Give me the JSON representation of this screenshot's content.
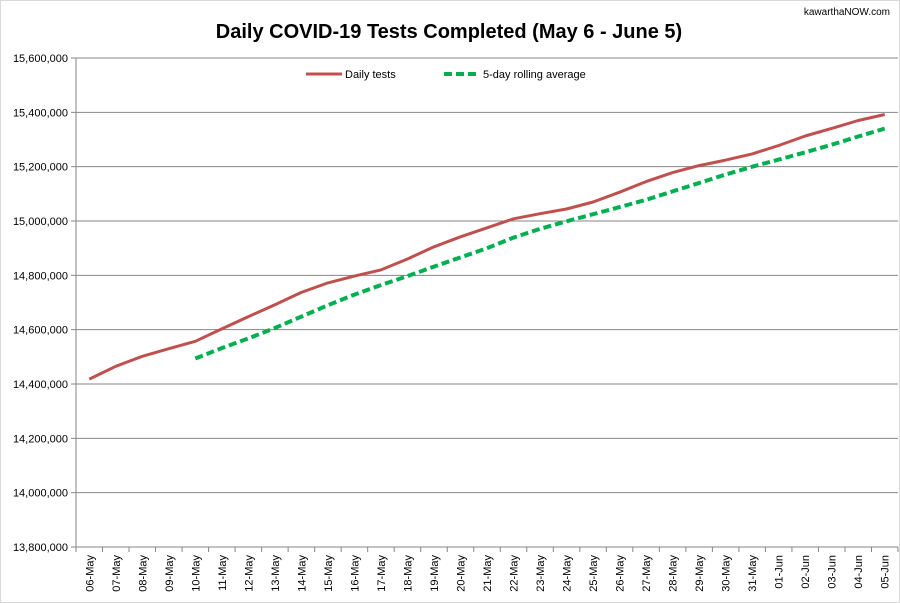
{
  "chart_data": {
    "type": "line",
    "title": "Daily COVID-19 Tests Completed (May 6 - June 5)",
    "source_label": "kawarthaNOW.com",
    "categories": [
      "06-May",
      "07-May",
      "08-May",
      "09-May",
      "10-May",
      "11-May",
      "12-May",
      "13-May",
      "14-May",
      "15-May",
      "16-May",
      "17-May",
      "18-May",
      "19-May",
      "20-May",
      "21-May",
      "22-May",
      "23-May",
      "24-May",
      "25-May",
      "26-May",
      "27-May",
      "28-May",
      "29-May",
      "30-May",
      "31-May",
      "01-Jun",
      "02-Jun",
      "03-Jun",
      "04-Jun",
      "05-Jun"
    ],
    "ylim": [
      13800000,
      15600000
    ],
    "yticks": [
      13800000,
      14000000,
      14200000,
      14400000,
      14600000,
      14800000,
      15000000,
      15200000,
      15400000,
      15600000
    ],
    "ytick_labels": [
      "13,800,000",
      "14,000,000",
      "14,200,000",
      "14,400,000",
      "14,600,000",
      "14,800,000",
      "15,000,000",
      "15,200,000",
      "15,400,000",
      "15,600,000"
    ],
    "grid": true,
    "legend_position": "top",
    "series": [
      {
        "name": "Daily tests",
        "color": "#c0504d",
        "style": "solid",
        "values": [
          14418000,
          14465000,
          14502000,
          14530000,
          14557000,
          14603000,
          14648000,
          14692000,
          14737000,
          14772000,
          14797000,
          14820000,
          14860000,
          14905000,
          14942000,
          14975000,
          15008000,
          15027000,
          15044000,
          15070000,
          15106000,
          15145000,
          15178000,
          15204000,
          15224000,
          15247000,
          15278000,
          15313000,
          15341000,
          15370000,
          15392000
        ]
      },
      {
        "name": "5-day rolling average",
        "color": "#00b050",
        "style": "dashed",
        "values": [
          null,
          null,
          null,
          null,
          14494000,
          14532000,
          14568000,
          14606000,
          14648000,
          14690000,
          14729000,
          14764000,
          14797000,
          14832000,
          14866000,
          14900000,
          14939000,
          14971000,
          14999000,
          15025000,
          15051000,
          15078000,
          15109000,
          15140000,
          15171000,
          15200000,
          15226000,
          15253000,
          15281000,
          15311000,
          15340000
        ]
      }
    ]
  }
}
